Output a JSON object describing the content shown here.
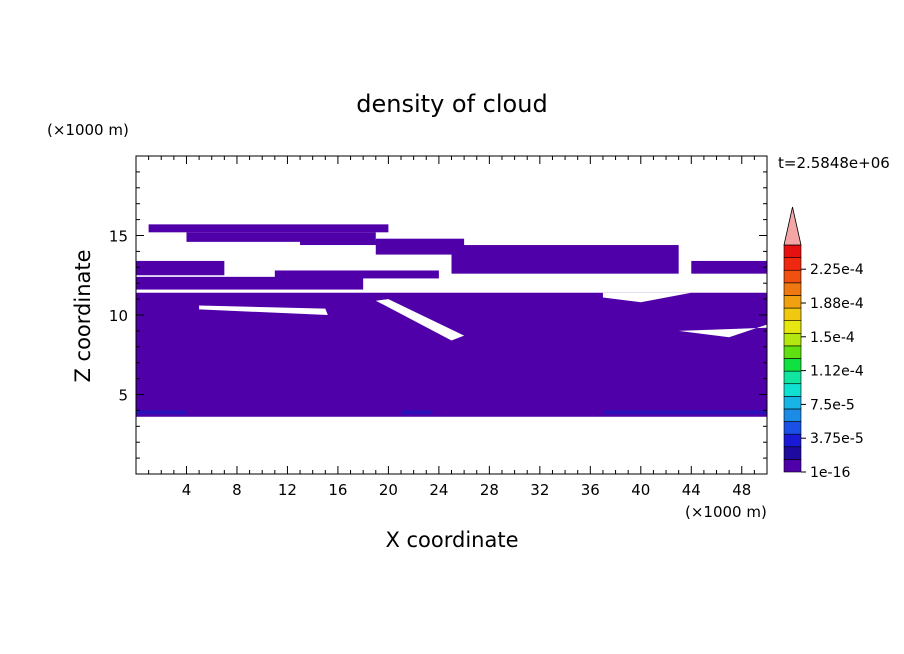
{
  "chart_data": {
    "type": "heatmap",
    "title": "density of cloud",
    "xlabel": "X coordinate",
    "ylabel": "Z coordinate",
    "x_unit": "(×1000 m)",
    "y_unit": "(×1000 m)",
    "time_label": "t=2.5848e+06",
    "xlim": [
      0,
      50
    ],
    "ylim": [
      0,
      20
    ],
    "xticks": [
      4,
      8,
      12,
      16,
      20,
      24,
      28,
      32,
      36,
      40,
      44,
      48
    ],
    "yticks": [
      5,
      10,
      15
    ],
    "colorbar": {
      "labels": [
        "1e-16",
        "3.75e-5",
        "7.5e-5",
        "1.12e-4",
        "1.5e-4",
        "1.88e-4",
        "2.25e-4"
      ],
      "colors": [
        "#5000a8",
        "#1e0a9e",
        "#1a1ad6",
        "#1a50e6",
        "#1a8ce6",
        "#19b4e6",
        "#10e0d0",
        "#10e6a0",
        "#10e040",
        "#60e010",
        "#b4e610",
        "#e6e610",
        "#f0c810",
        "#f0a010",
        "#f07810",
        "#f05010",
        "#f02810",
        "#e61010"
      ],
      "extend_color": "#f4a6a6"
    },
    "cloud_color": "#5000a8",
    "cloud_dark_color": "#2a10b8",
    "cloud_layers": [
      {
        "x": [
          1,
          20
        ],
        "z": [
          15.2,
          15.7
        ]
      },
      {
        "x": [
          4,
          19
        ],
        "z": [
          14.6,
          15.2
        ]
      },
      {
        "x": [
          13,
          20
        ],
        "z": [
          14.4,
          14.7
        ]
      },
      {
        "x": [
          19,
          26
        ],
        "z": [
          13.8,
          14.8
        ]
      },
      {
        "x": [
          0,
          7
        ],
        "z": [
          12.5,
          13.4
        ]
      },
      {
        "x": [
          0,
          18
        ],
        "z": [
          11.6,
          12.4
        ]
      },
      {
        "x": [
          11,
          24
        ],
        "z": [
          12.3,
          12.8
        ]
      },
      {
        "x": [
          25,
          43
        ],
        "z": [
          12.6,
          14.4
        ]
      },
      {
        "x": [
          44,
          50
        ],
        "z": [
          12.6,
          13.4
        ]
      },
      {
        "x": [
          0,
          50
        ],
        "z": [
          3.6,
          11.4
        ]
      }
    ]
  }
}
